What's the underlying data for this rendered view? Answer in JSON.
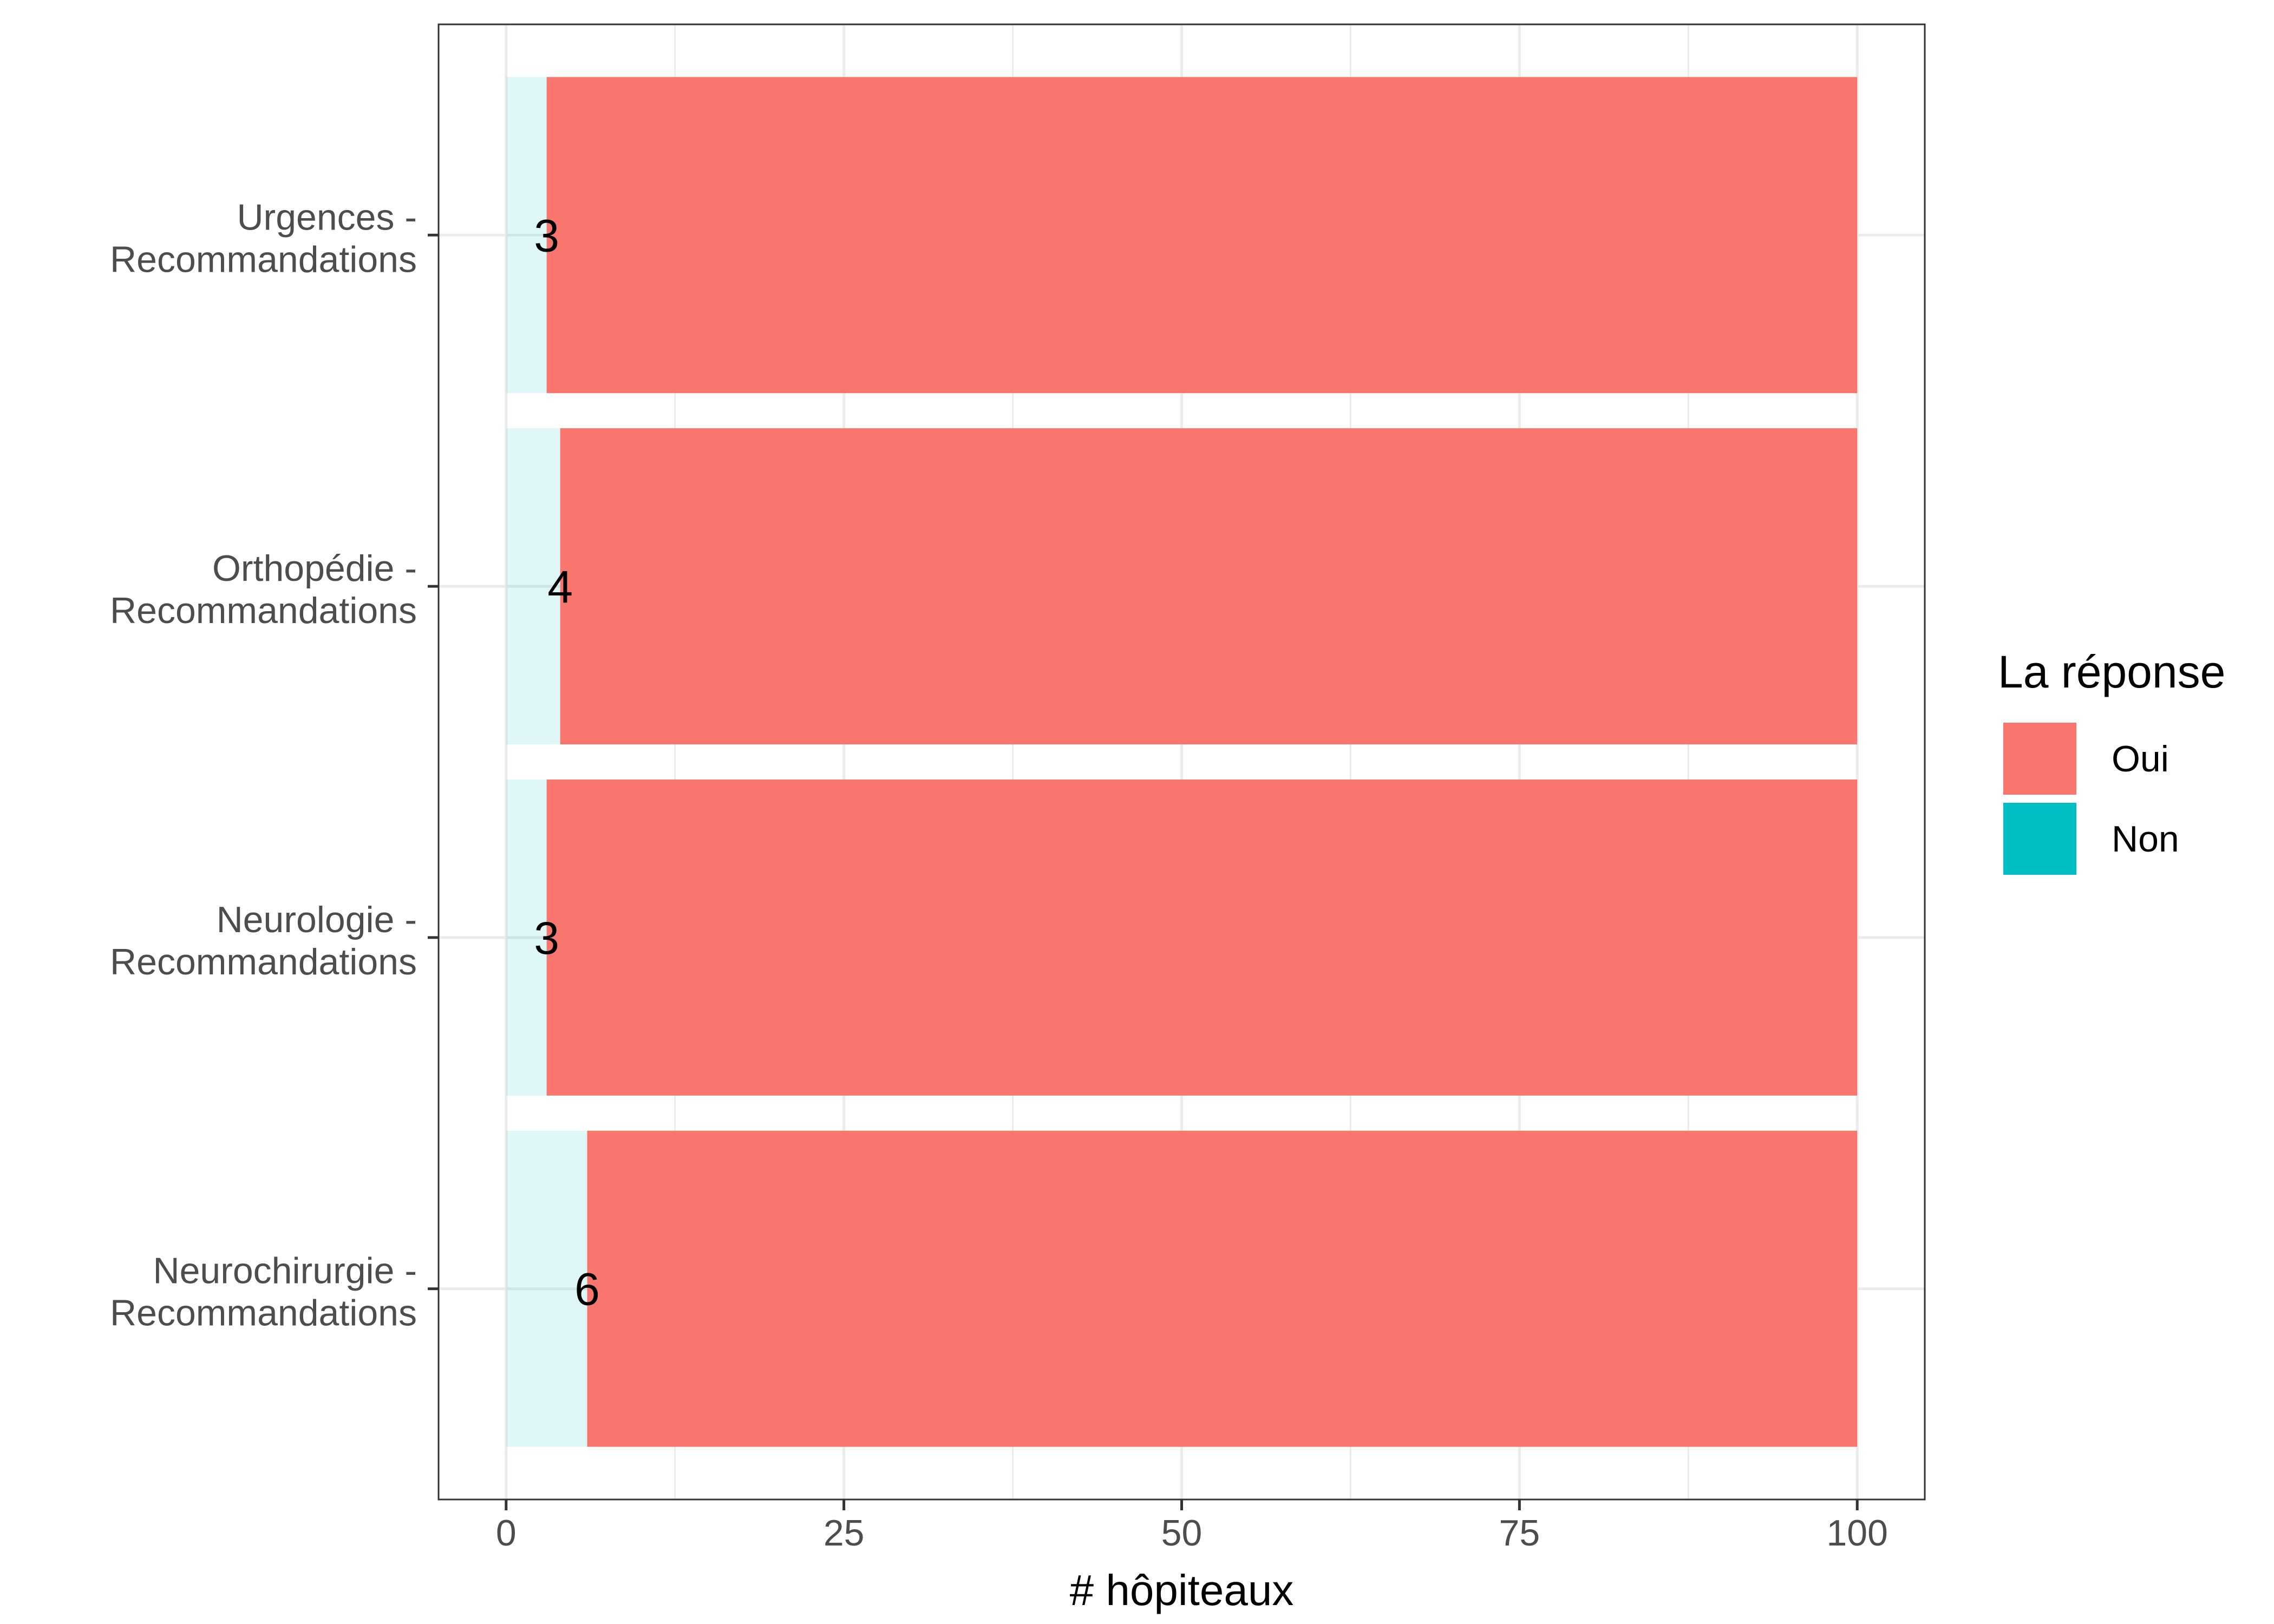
{
  "chart_data": {
    "type": "bar",
    "orientation": "horizontal",
    "stacked": true,
    "categories": [
      [
        "Urgences -",
        "Recommandations"
      ],
      [
        "Orthopédie -",
        "Recommandations"
      ],
      [
        "Neurologie -",
        "Recommandations"
      ],
      [
        "Neurochirurgie -",
        "Recommandations"
      ]
    ],
    "series": [
      {
        "name": "Non",
        "color": "#00BFC4",
        "opacity": 0.12,
        "values": [
          3,
          4,
          3,
          6
        ]
      },
      {
        "name": "Oui",
        "color": "#F8766D",
        "opacity": 1,
        "values": [
          97,
          96,
          97,
          94
        ]
      }
    ],
    "data_labels": [
      "3",
      "4",
      "3",
      "6"
    ],
    "xlabel": "# hôpiteaux",
    "ylabel": "",
    "xlim": [
      -5,
      105
    ],
    "xticks": [
      0,
      25,
      50,
      75,
      100
    ],
    "grid": true,
    "legend": {
      "title": "La réponse",
      "position": "right",
      "entries": [
        {
          "label": "Oui",
          "color": "#F8766D"
        },
        {
          "label": "Non",
          "color": "#00BFC4"
        }
      ]
    }
  }
}
